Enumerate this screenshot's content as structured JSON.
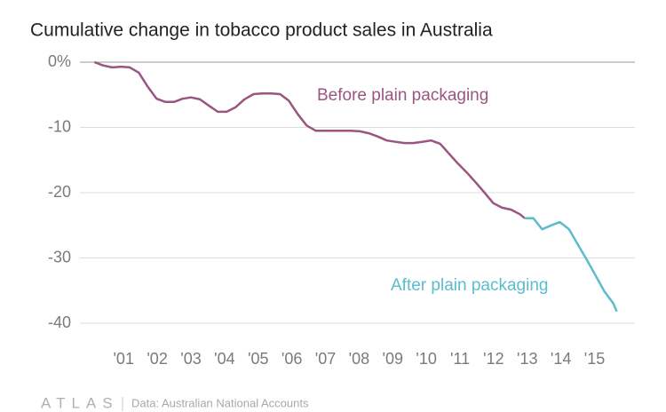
{
  "chart_data": {
    "type": "line",
    "title": "Cumulative change in tobacco product sales in Australia",
    "brand": "ATLAS",
    "source": "Data: Australian National Accounts",
    "xlim": [
      1999.7,
      2016.2
    ],
    "ylim": [
      -40,
      0
    ],
    "xticks": [
      {
        "value": 2001,
        "label": "'01"
      },
      {
        "value": 2002,
        "label": "'02"
      },
      {
        "value": 2003,
        "label": "'03"
      },
      {
        "value": 2004,
        "label": "'04"
      },
      {
        "value": 2005,
        "label": "'05"
      },
      {
        "value": 2006,
        "label": "'06"
      },
      {
        "value": 2007,
        "label": "'07"
      },
      {
        "value": 2008,
        "label": "'08"
      },
      {
        "value": 2009,
        "label": "'09"
      },
      {
        "value": 2010,
        "label": "'10"
      },
      {
        "value": 2011,
        "label": "'11"
      },
      {
        "value": 2012,
        "label": "'12"
      },
      {
        "value": 2013,
        "label": "'13"
      },
      {
        "value": 2014,
        "label": "'14"
      },
      {
        "value": 2015,
        "label": "'15"
      }
    ],
    "yticks": [
      {
        "value": 0,
        "label": "0%"
      },
      -10,
      -20,
      -30,
      -40
    ],
    "grid": true,
    "series": [
      {
        "name": "Before plain packaging",
        "color": "#9a5580",
        "x": [
          2000.13,
          2000.39,
          2000.66,
          2000.92,
          2001.18,
          2001.45,
          2001.71,
          2001.98,
          2002.24,
          2002.5,
          2002.75,
          2003.0,
          2003.27,
          2003.54,
          2003.8,
          2004.06,
          2004.33,
          2004.59,
          2004.86,
          2005.12,
          2005.39,
          2005.65,
          2005.91,
          2006.18,
          2006.44,
          2006.71,
          2006.97,
          2007.23,
          2007.5,
          2007.76,
          2008.03,
          2008.29,
          2008.56,
          2008.82,
          2009.08,
          2009.35,
          2009.61,
          2009.88,
          2010.14,
          2010.41,
          2010.67,
          2010.93,
          2011.2,
          2011.46,
          2011.73,
          2011.99,
          2012.25,
          2012.52,
          2012.78,
          2012.92
        ],
        "values": [
          0,
          -0.5,
          -0.8,
          -0.7,
          -0.8,
          -1.6,
          -3.7,
          -5.6,
          -6.1,
          -6.1,
          -5.6,
          -5.4,
          -5.7,
          -6.7,
          -7.6,
          -7.6,
          -6.9,
          -5.7,
          -4.9,
          -4.8,
          -4.8,
          -4.9,
          -5.9,
          -8.0,
          -9.7,
          -10.5,
          -10.5,
          -10.5,
          -10.5,
          -10.5,
          -10.6,
          -10.9,
          -11.4,
          -12.0,
          -12.2,
          -12.4,
          -12.4,
          -12.2,
          -12.0,
          -12.5,
          -14.0,
          -15.5,
          -16.9,
          -18.4,
          -20.0,
          -21.6,
          -22.3,
          -22.6,
          -23.3,
          -23.9
        ]
      },
      {
        "name": "After plain packaging",
        "color": "#5bbccc",
        "x": [
          2012.92,
          2013.18,
          2013.44,
          2013.71,
          2013.97,
          2014.24,
          2014.5,
          2014.76,
          2015.03,
          2015.29,
          2015.56,
          2015.66
        ],
        "values": [
          -23.9,
          -23.9,
          -25.6,
          -25.0,
          -24.5,
          -25.6,
          -27.9,
          -30.2,
          -32.7,
          -35.1,
          -37.0,
          -38.2
        ]
      }
    ]
  }
}
